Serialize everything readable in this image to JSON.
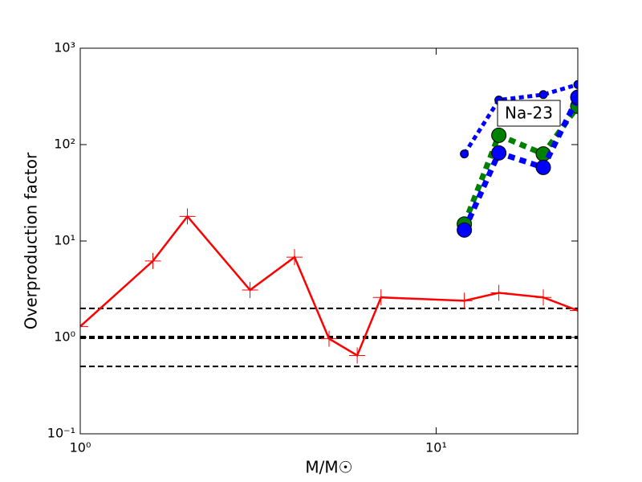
{
  "chart_data": {
    "type": "line",
    "xlabel": "M/M☉",
    "ylabel": "Overproduction factor",
    "xlog": true,
    "ylog": true,
    "xlim": [
      1,
      25
    ],
    "ylim": [
      0.1,
      1000
    ],
    "xticks": [
      {
        "value": 1,
        "label": "10⁰"
      },
      {
        "value": 10,
        "label": "10¹"
      }
    ],
    "yticks": [
      {
        "value": 0.1,
        "label": "10⁻¹"
      },
      {
        "value": 1,
        "label": "10⁰"
      },
      {
        "value": 10,
        "label": "10¹"
      },
      {
        "value": 100,
        "label": "10²"
      },
      {
        "value": 1000,
        "label": "10³"
      }
    ],
    "reference_lines": [
      {
        "value": 2,
        "width": 2
      },
      {
        "value": 1,
        "width": 4
      },
      {
        "value": 0.5,
        "width": 2
      }
    ],
    "annotation": "Na-23",
    "series": [
      {
        "color": "#ff0000",
        "marker": "plus",
        "linestyle": "solid",
        "linewidth": 2.5,
        "x": [
          1,
          1.6,
          2,
          3,
          4,
          5,
          6,
          7,
          12,
          15,
          20,
          25
        ],
        "values": [
          1.3,
          6.2,
          18,
          3.1,
          6.8,
          0.97,
          0.65,
          2.6,
          2.4,
          2.9,
          2.6,
          1.9
        ]
      },
      {
        "color": "#0000ff",
        "marker": "small-circle",
        "linestyle": "dotted",
        "linewidth": 5,
        "x": [
          12,
          15,
          20,
          25
        ],
        "values": [
          80,
          290,
          330,
          420
        ]
      },
      {
        "color": "#008000",
        "marker": "circle",
        "linestyle": "dotted",
        "linewidth": 7,
        "x": [
          12,
          15,
          20,
          25
        ],
        "values": [
          15,
          125,
          80,
          250
        ]
      },
      {
        "color": "#0000ff",
        "marker": "circle",
        "linestyle": "dotted",
        "linewidth": 7,
        "x": [
          12,
          15,
          20,
          25
        ],
        "values": [
          13,
          82,
          58,
          310
        ]
      }
    ]
  }
}
